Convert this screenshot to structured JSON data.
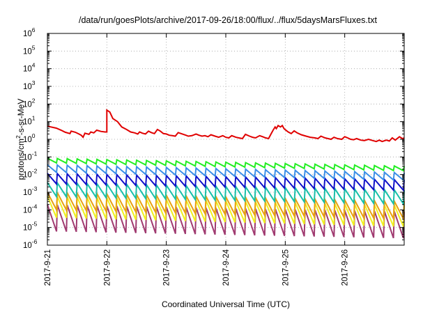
{
  "chart_data": {
    "type": "line",
    "title": "/data/run/goesPlots/archive/2017-09-26/18:00/flux/../flux/5daysMarsFluxes.txt",
    "xlabel": "Coordinated Universal Time (UTC)",
    "ylabel": {
      "prefix": "protons/cm",
      "exponent": "2",
      "suffix": "-s-sr-MeV"
    },
    "yscale": "log",
    "ylim": [
      1e-06,
      1000000.0
    ],
    "xlim_days": [
      0,
      6.0
    ],
    "grid": true,
    "legend": "none",
    "x_ticks": [
      {
        "label": "2017-9-21",
        "day": 0
      },
      {
        "label": "2017-9-22",
        "day": 1
      },
      {
        "label": "2017-9-23",
        "day": 2
      },
      {
        "label": "2017-9-24",
        "day": 3
      },
      {
        "label": "2017-9-25",
        "day": 4
      },
      {
        "label": "2017-9-26",
        "day": 5
      }
    ],
    "y_ticks": [
      {
        "base": "10",
        "exp": "-6",
        "value": 1e-06
      },
      {
        "base": "10",
        "exp": "-5",
        "value": 1e-05
      },
      {
        "base": "10",
        "exp": "-4",
        "value": 0.0001
      },
      {
        "base": "10",
        "exp": "-3",
        "value": 0.001
      },
      {
        "base": "10",
        "exp": "-2",
        "value": 0.01
      },
      {
        "base": "10",
        "exp": "-1",
        "value": 0.1
      },
      {
        "base": "10",
        "exp": "0",
        "value": 1
      },
      {
        "base": "10",
        "exp": "1",
        "value": 10
      },
      {
        "base": "10",
        "exp": "2",
        "value": 100
      },
      {
        "base": "10",
        "exp": "3",
        "value": 1000
      },
      {
        "base": "10",
        "exp": "4",
        "value": 10000
      },
      {
        "base": "10",
        "exp": "5",
        "value": 100000
      },
      {
        "base": "10",
        "exp": "6",
        "value": 1000000
      }
    ],
    "series": [
      {
        "color": "#e00000",
        "style": "segments",
        "points": [
          [
            0.0,
            5.5
          ],
          [
            0.15,
            4.3
          ],
          [
            0.23,
            3.3
          ],
          [
            0.3,
            2.5
          ],
          [
            0.38,
            2.1
          ],
          [
            0.4,
            2.9
          ],
          [
            0.47,
            2.5
          ],
          [
            0.53,
            2.0
          ],
          [
            0.57,
            1.7
          ],
          [
            0.6,
            1.3
          ],
          [
            0.63,
            2.2
          ],
          [
            0.7,
            1.9
          ],
          [
            0.73,
            2.6
          ],
          [
            0.78,
            2.3
          ],
          [
            0.83,
            3.3
          ],
          [
            0.9,
            2.8
          ],
          [
            0.97,
            2.6
          ],
          [
            1.0,
            2.6
          ],
          [
            1.0,
            45
          ],
          [
            1.05,
            35
          ],
          [
            1.1,
            15
          ],
          [
            1.18,
            10
          ],
          [
            1.25,
            5
          ],
          [
            1.33,
            3.6
          ],
          [
            1.4,
            2.6
          ],
          [
            1.47,
            2.3
          ],
          [
            1.52,
            2.0
          ],
          [
            1.55,
            2.6
          ],
          [
            1.6,
            2.2
          ],
          [
            1.65,
            2.0
          ],
          [
            1.7,
            2.9
          ],
          [
            1.75,
            2.4
          ],
          [
            1.8,
            2.1
          ],
          [
            1.85,
            3.6
          ],
          [
            1.9,
            2.9
          ],
          [
            1.95,
            2.1
          ],
          [
            2.0,
            2.0
          ],
          [
            2.05,
            1.7
          ],
          [
            2.1,
            1.6
          ],
          [
            2.15,
            1.5
          ],
          [
            2.2,
            2.4
          ],
          [
            2.27,
            2.0
          ],
          [
            2.33,
            1.7
          ],
          [
            2.37,
            1.5
          ],
          [
            2.43,
            1.6
          ],
          [
            2.5,
            2.0
          ],
          [
            2.55,
            1.7
          ],
          [
            2.6,
            1.5
          ],
          [
            2.65,
            1.6
          ],
          [
            2.7,
            1.4
          ],
          [
            2.75,
            1.8
          ],
          [
            2.82,
            1.5
          ],
          [
            2.88,
            1.3
          ],
          [
            2.95,
            1.6
          ],
          [
            3.0,
            1.3
          ],
          [
            3.05,
            1.2
          ],
          [
            3.1,
            1.6
          ],
          [
            3.17,
            1.3
          ],
          [
            3.22,
            1.2
          ],
          [
            3.28,
            1.1
          ],
          [
            3.33,
            1.9
          ],
          [
            3.4,
            1.5
          ],
          [
            3.45,
            1.3
          ],
          [
            3.5,
            1.2
          ],
          [
            3.57,
            1.6
          ],
          [
            3.62,
            1.4
          ],
          [
            3.67,
            1.2
          ],
          [
            3.72,
            1.1
          ],
          [
            3.76,
            2.0
          ],
          [
            3.8,
            3.5
          ],
          [
            3.83,
            5.0
          ],
          [
            3.85,
            4.0
          ],
          [
            3.88,
            6.0
          ],
          [
            3.92,
            5.0
          ],
          [
            3.95,
            6.0
          ],
          [
            3.98,
            4.0
          ],
          [
            4.0,
            3.5
          ],
          [
            4.05,
            2.6
          ],
          [
            4.1,
            2.1
          ],
          [
            4.15,
            3.0
          ],
          [
            4.2,
            2.3
          ],
          [
            4.27,
            1.8
          ],
          [
            4.35,
            1.5
          ],
          [
            4.42,
            1.3
          ],
          [
            4.5,
            1.2
          ],
          [
            4.55,
            1.1
          ],
          [
            4.6,
            1.5
          ],
          [
            4.67,
            1.2
          ],
          [
            4.72,
            1.1
          ],
          [
            4.77,
            1.0
          ],
          [
            4.82,
            1.3
          ],
          [
            4.88,
            1.1
          ],
          [
            4.95,
            1.0
          ],
          [
            5.0,
            1.4
          ],
          [
            5.05,
            1.2
          ],
          [
            5.1,
            1.0
          ],
          [
            5.15,
            0.95
          ],
          [
            5.2,
            1.1
          ],
          [
            5.27,
            0.9
          ],
          [
            5.33,
            0.85
          ],
          [
            5.4,
            1.0
          ],
          [
            5.47,
            0.85
          ],
          [
            5.53,
            0.75
          ],
          [
            5.58,
            0.9
          ],
          [
            5.63,
            0.75
          ],
          [
            5.7,
            0.9
          ],
          [
            5.75,
            0.8
          ],
          [
            5.8,
            1.2
          ],
          [
            5.85,
            0.9
          ],
          [
            5.92,
            1.4
          ],
          [
            5.97,
            1.1
          ],
          [
            6.0,
            1.2
          ]
        ]
      },
      {
        "color": "#22ee22",
        "style": "sawtooth",
        "start": 0.065,
        "end": 0.023,
        "peak_factor": 1.3,
        "trough_factor": 0.7,
        "cycles": 36
      },
      {
        "color": "#3a8ee8",
        "style": "sawtooth",
        "start": 0.024,
        "end": 0.0085,
        "peak_factor": 1.5,
        "trough_factor": 0.55,
        "cycles": 36
      },
      {
        "color": "#1010c8",
        "style": "sawtooth",
        "start": 0.0065,
        "end": 0.0028,
        "peak_factor": 1.8,
        "trough_factor": 0.45,
        "cycles": 36
      },
      {
        "color": "#18c0a8",
        "style": "sawtooth",
        "start": 0.0016,
        "end": 0.0006,
        "peak_factor": 2.2,
        "trough_factor": 0.35,
        "cycles": 36
      },
      {
        "color": "#e8a010",
        "style": "sawtooth",
        "start": 0.0004,
        "end": 0.00012,
        "peak_factor": 2.5,
        "trough_factor": 0.25,
        "cycles": 36
      },
      {
        "color": "#f0f020",
        "style": "sawtooth",
        "start": 0.0002,
        "end": 6e-05,
        "peak_factor": 3.0,
        "trough_factor": 0.18,
        "cycles": 36
      },
      {
        "color": "#a03a70",
        "style": "sawtooth",
        "start": 5e-05,
        "end": 2e-05,
        "peak_factor": 4.0,
        "trough_factor": 0.12,
        "cycles": 36
      }
    ]
  }
}
